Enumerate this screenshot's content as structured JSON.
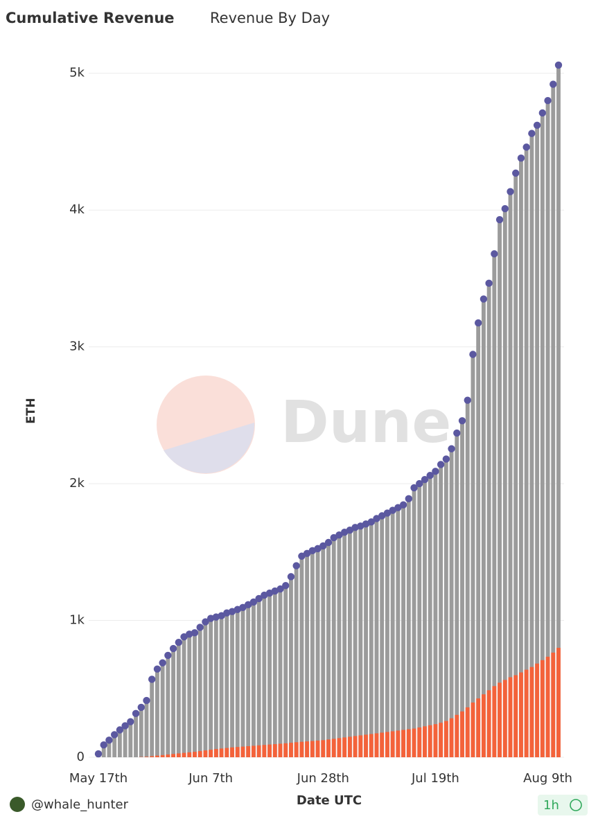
{
  "tabs": [
    "Cumulative Revenue",
    "Revenue By Day"
  ],
  "watermark": "Dune",
  "footer": {
    "author": "@whale_hunter",
    "refresh": "1h"
  },
  "chart_data": {
    "type": "bar",
    "xlabel": "Date UTC",
    "ylabel": "ETH",
    "categories": [
      "May 17th",
      null,
      null,
      null,
      null,
      null,
      null,
      null,
      null,
      null,
      null,
      null,
      null,
      null,
      null,
      null,
      null,
      null,
      null,
      null,
      null,
      "Jun 7th",
      null,
      null,
      null,
      null,
      null,
      null,
      null,
      null,
      null,
      null,
      null,
      null,
      null,
      null,
      null,
      null,
      null,
      null,
      null,
      null,
      "Jun 28th",
      null,
      null,
      null,
      null,
      null,
      null,
      null,
      null,
      null,
      null,
      null,
      null,
      null,
      null,
      null,
      null,
      null,
      null,
      null,
      null,
      "Jul 19th",
      null,
      null,
      null,
      null,
      null,
      null,
      null,
      null,
      null,
      null,
      null,
      null,
      null,
      null,
      null,
      null,
      null,
      null,
      null,
      null,
      "Aug 9th",
      null,
      null
    ],
    "series": [
      {
        "color": "#9b9b9b",
        "marker_color": "#5b58a0",
        "markers": true,
        "values": [
          25,
          90,
          125,
          165,
          200,
          230,
          260,
          320,
          365,
          415,
          570,
          645,
          690,
          745,
          795,
          840,
          880,
          900,
          910,
          950,
          990,
          1015,
          1025,
          1035,
          1055,
          1065,
          1080,
          1095,
          1115,
          1135,
          1160,
          1185,
          1200,
          1215,
          1230,
          1255,
          1320,
          1400,
          1470,
          1490,
          1510,
          1525,
          1545,
          1570,
          1605,
          1625,
          1645,
          1660,
          1680,
          1690,
          1705,
          1720,
          1745,
          1765,
          1785,
          1805,
          1825,
          1845,
          1890,
          1970,
          2000,
          2030,
          2060,
          2090,
          2140,
          2180,
          2255,
          2370,
          2460,
          2610,
          2945,
          3175,
          3350,
          3465,
          3680,
          3930,
          4010,
          4135,
          4270,
          4380,
          4460,
          4560,
          4620,
          4710,
          4800,
          4920,
          5060
        ]
      },
      {
        "color": "#f4623a",
        "markers": false,
        "values": [
          0,
          0,
          0,
          0,
          0,
          0,
          0,
          0,
          2,
          4,
          8,
          12,
          16,
          20,
          24,
          28,
          32,
          36,
          40,
          45,
          50,
          55,
          60,
          64,
          68,
          72,
          75,
          78,
          81,
          84,
          87,
          90,
          93,
          96,
          99,
          102,
          106,
          110,
          113,
          116,
          119,
          122,
          125,
          130,
          135,
          140,
          145,
          150,
          155,
          160,
          165,
          170,
          175,
          180,
          185,
          190,
          195,
          200,
          205,
          210,
          218,
          226,
          234,
          242,
          252,
          265,
          285,
          310,
          335,
          365,
          400,
          430,
          460,
          490,
          520,
          545,
          565,
          585,
          600,
          620,
          640,
          660,
          685,
          710,
          735,
          765,
          800
        ]
      }
    ],
    "ylim": [
      0,
      5100
    ],
    "yticks": [
      0,
      {
        "value": 1000,
        "label": "1k"
      },
      {
        "value": 2000,
        "label": "2k"
      },
      {
        "value": 3000,
        "label": "3k"
      },
      {
        "value": 4000,
        "label": "4k"
      },
      {
        "value": 5000,
        "label": "5k"
      }
    ],
    "grid": true
  }
}
